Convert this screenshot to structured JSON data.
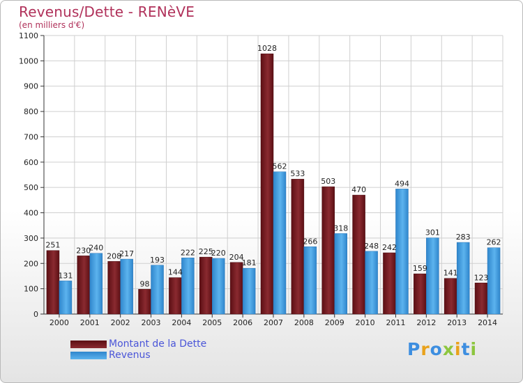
{
  "title": "Revenus/Dette - RENèVE",
  "subtitle": "(en milliers d'€)",
  "legend": [
    {
      "label": "Montant de la Dette",
      "color": "#7a1a1f"
    },
    {
      "label": "Revenus",
      "color": "#3d9be0"
    }
  ],
  "logo": {
    "text": "Proxiti",
    "letter_colors": [
      "#3d8ee0",
      "#e9a21b",
      "#3d8ee0",
      "#8dc63f",
      "#e9a21b",
      "#3d8ee0",
      "#8dc63f"
    ]
  },
  "chart_data": {
    "type": "bar",
    "categories": [
      "2000",
      "2001",
      "2002",
      "2003",
      "2004",
      "2005",
      "2006",
      "2007",
      "2008",
      "2009",
      "2010",
      "2011",
      "2012",
      "2013",
      "2014"
    ],
    "series": [
      {
        "name": "Montant de la Dette",
        "color": "#7a1a1f",
        "values": [
          251,
          230,
          208,
          98,
          144,
          225,
          204,
          1028,
          533,
          503,
          470,
          242,
          159,
          141,
          123
        ]
      },
      {
        "name": "Revenus",
        "color": "#3d9be0",
        "values": [
          131,
          240,
          217,
          193,
          222,
          220,
          181,
          562,
          266,
          318,
          248,
          494,
          301,
          283,
          262
        ]
      }
    ],
    "ylim": [
      0,
      1100
    ],
    "yticks": [
      0,
      100,
      200,
      300,
      400,
      500,
      600,
      700,
      800,
      900,
      1000,
      1100
    ],
    "grid": true,
    "legend_position": "bottom-left"
  }
}
